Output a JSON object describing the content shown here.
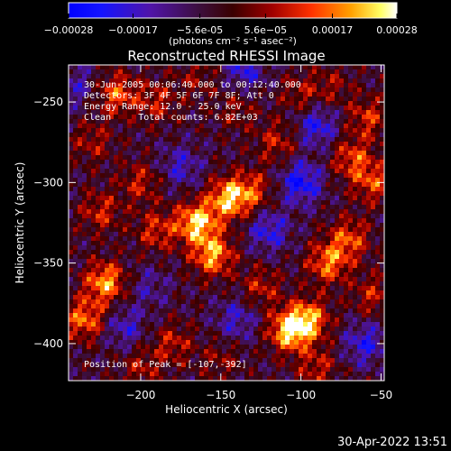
{
  "chart_data": {
    "type": "heatmap",
    "title": "Reconstructed RHESSI Image",
    "xlabel": "Heliocentric X (arcsec)",
    "ylabel": "Heliocentric Y (arcsec)",
    "xlim": [
      -245,
      -48
    ],
    "ylim": [
      -423,
      -227
    ],
    "xticks": [
      -200,
      -150,
      -100,
      -50
    ],
    "yticks": [
      -250,
      -300,
      -350,
      -400
    ],
    "colorbar": {
      "min": -0.00028,
      "max": 0.00028,
      "ticks": [
        {
          "value": -0.00028,
          "label": "-0.00028"
        },
        {
          "value": -0.00017,
          "label": "-0.00017"
        },
        {
          "value": -5.6e-05,
          "label": "-5.6e-05"
        },
        {
          "value": 5.6e-05,
          "label": "5.6e-05"
        },
        {
          "value": 0.00017,
          "label": "0.00017"
        },
        {
          "value": 0.00028,
          "label": "0.00028"
        }
      ],
      "units": "(photons cm⁻² s⁻¹ asec⁻²)",
      "colormap": "blue-purple-red-yellow-white"
    },
    "annotations": [
      "30-Jun-2005 00:06:40.000 to 00:12:40.000",
      "Detectors: 3F 4F 5F 6F 7F 8F; Att 0",
      "Energy Range: 12.0 - 25.0 keV",
      "Clean     Total counts: 6.82E+03"
    ],
    "peak_label": "Position of Peak = [-107,-392]",
    "peak": {
      "x": -107,
      "y": -392
    },
    "hotspots": [
      {
        "x": -165,
        "y": -325,
        "value": 0.00028
      },
      {
        "x": -145,
        "y": -310,
        "value": 0.00026
      },
      {
        "x": -155,
        "y": -345,
        "value": 0.00024
      },
      {
        "x": -107,
        "y": -392,
        "value": 0.00028
      },
      {
        "x": -95,
        "y": -385,
        "value": 0.00022
      },
      {
        "x": -222,
        "y": -362,
        "value": 0.00024
      },
      {
        "x": -235,
        "y": -385,
        "value": 0.0002
      },
      {
        "x": -215,
        "y": -245,
        "value": 0.00018
      },
      {
        "x": -190,
        "y": -250,
        "value": 0.00012
      },
      {
        "x": -83,
        "y": -350,
        "value": 0.0002
      },
      {
        "x": -70,
        "y": -335,
        "value": 0.00017
      },
      {
        "x": -68,
        "y": -285,
        "value": 0.00016
      },
      {
        "x": -55,
        "y": -300,
        "value": 0.00016
      },
      {
        "x": -58,
        "y": -260,
        "value": 0.00014
      },
      {
        "x": -130,
        "y": -305,
        "value": 0.00014
      },
      {
        "x": -115,
        "y": -275,
        "value": 0.00012
      },
      {
        "x": -100,
        "y": -245,
        "value": 0.0001
      },
      {
        "x": -200,
        "y": -300,
        "value": 0.00012
      },
      {
        "x": -190,
        "y": -330,
        "value": 0.00014
      },
      {
        "x": -225,
        "y": -318,
        "value": 0.00013
      },
      {
        "x": -180,
        "y": -400,
        "value": 0.00012
      },
      {
        "x": -150,
        "y": -410,
        "value": 8e-05
      },
      {
        "x": -125,
        "y": -365,
        "value": 0.00012
      },
      {
        "x": -140,
        "y": -255,
        "value": 8e-05
      },
      {
        "x": -230,
        "y": -275,
        "value": 0.0001
      },
      {
        "x": -90,
        "y": -415,
        "value": 0.00012
      },
      {
        "x": -55,
        "y": -370,
        "value": 0.00012
      },
      {
        "x": -200,
        "y": -415,
        "value": 0.0001
      },
      {
        "x": -165,
        "y": -235,
        "value": 8e-05
      },
      {
        "x": -80,
        "y": -240,
        "value": 8e-05
      },
      {
        "x": -120,
        "y": -330,
        "value": -0.00015
      },
      {
        "x": -100,
        "y": -300,
        "value": -0.0002
      },
      {
        "x": -175,
        "y": -290,
        "value": -0.00012
      },
      {
        "x": -135,
        "y": -230,
        "value": -0.00014
      },
      {
        "x": -210,
        "y": -390,
        "value": -0.00012
      },
      {
        "x": -60,
        "y": -400,
        "value": -0.00015
      },
      {
        "x": -195,
        "y": -365,
        "value": -8e-05
      },
      {
        "x": -140,
        "y": -385,
        "value": -0.00012
      },
      {
        "x": -90,
        "y": -265,
        "value": -0.00016
      },
      {
        "x": -240,
        "y": -240,
        "value": -0.0001
      }
    ]
  },
  "footer": {
    "timestamp": "30-Apr-2022 13:51"
  }
}
